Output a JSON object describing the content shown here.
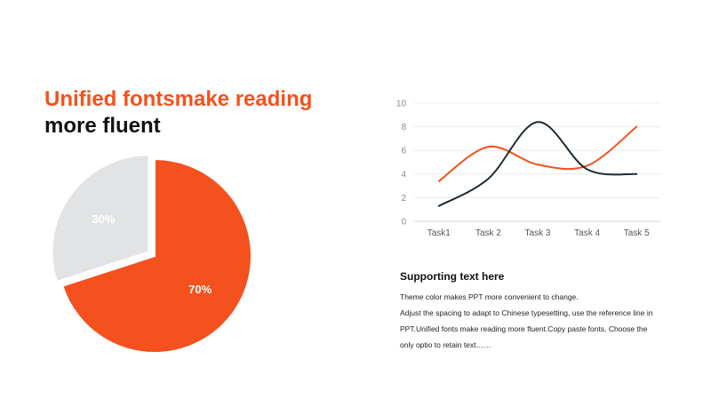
{
  "colors": {
    "accent": "#f4511e",
    "dark": "#1e2b33",
    "grey": "#e2e3e4",
    "title_dark": "#111111",
    "axis_text": "#8a8a8a",
    "grid": "#ececec"
  },
  "heading": {
    "line1": "Unified fontsmake reading",
    "line2": "more fluent"
  },
  "support": {
    "title": "Supporting text here",
    "lines": [
      "Theme  color makes PPT more convenient  to change.",
      "Adjust the spacing to adapt to Chinese typesetting, use the reference line  in",
      "PPT.Unified  fonts make reading more fluent.Copy paste fonts. Choose the",
      "only optio to retain text……"
    ]
  },
  "chart_data": [
    {
      "type": "pie",
      "slices": [
        {
          "label": "70%",
          "value": 70
        },
        {
          "label": "30%",
          "value": 30
        }
      ]
    },
    {
      "type": "line",
      "categories": [
        "Task1",
        "Task 2",
        "Task 3",
        "Task 4",
        "Task 5"
      ],
      "series": [
        {
          "values": [
            3.4,
            6.3,
            4.8,
            4.7,
            8.0
          ]
        },
        {
          "values": [
            1.3,
            3.6,
            8.4,
            4.4,
            4.0
          ]
        }
      ],
      "ylim": [
        0,
        10
      ],
      "yticks": [
        0,
        2,
        4,
        6,
        8,
        10
      ],
      "grid": true,
      "smooth": true
    }
  ]
}
